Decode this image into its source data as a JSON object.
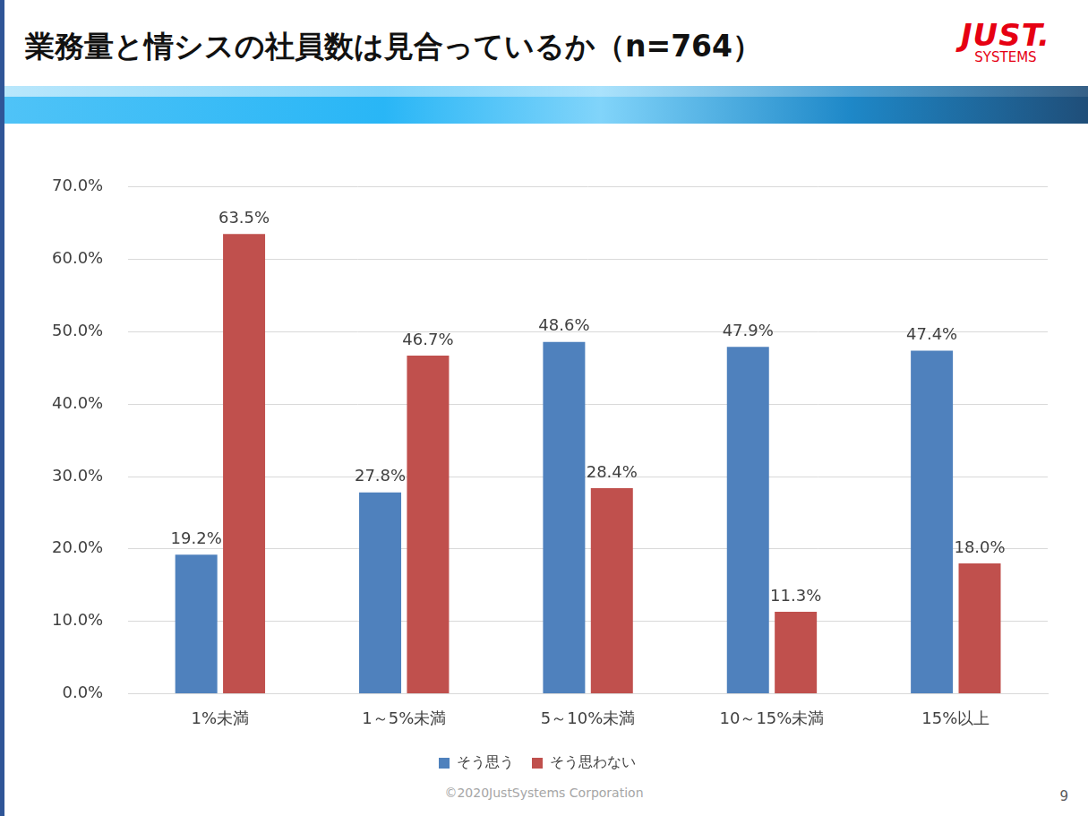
{
  "chart_data": {
    "type": "bar",
    "title": "業務量と情シスの社員数は見合っているか（n=764）",
    "categories": [
      "1%未満",
      "1～5%未満",
      "5～10%未満",
      "10～15%未満",
      "15%以上"
    ],
    "series": [
      {
        "name": "そう思う",
        "color": "#4f81bd",
        "values": [
          19.2,
          27.8,
          48.6,
          47.9,
          47.4
        ],
        "value_labels": [
          "19.2%",
          "27.8%",
          "48.6%",
          "47.9%",
          "47.4%"
        ]
      },
      {
        "name": "そう思わない",
        "color": "#c0504d",
        "values": [
          63.5,
          46.7,
          28.4,
          11.3,
          18.0
        ],
        "value_labels": [
          "63.5%",
          "46.7%",
          "28.4%",
          "11.3%",
          "18.0%"
        ]
      }
    ],
    "ylim": [
      0,
      70
    ],
    "yticks": [
      {
        "value": 0,
        "label": "0.0%"
      },
      {
        "value": 10,
        "label": "10.0%"
      },
      {
        "value": 20,
        "label": "20.0%"
      },
      {
        "value": 30,
        "label": "30.0%"
      },
      {
        "value": 40,
        "label": "40.0%"
      },
      {
        "value": 50,
        "label": "50.0%"
      },
      {
        "value": 60,
        "label": "60.0%"
      },
      {
        "value": 70,
        "label": "70.0%"
      }
    ],
    "grid": true,
    "legend": "bottom",
    "data_labels": true
  },
  "logo": {
    "main": "JUST.",
    "sub": "SYSTEMS"
  },
  "footer": {
    "copyright": "©2020JustSystems Corporation",
    "page": "9"
  }
}
